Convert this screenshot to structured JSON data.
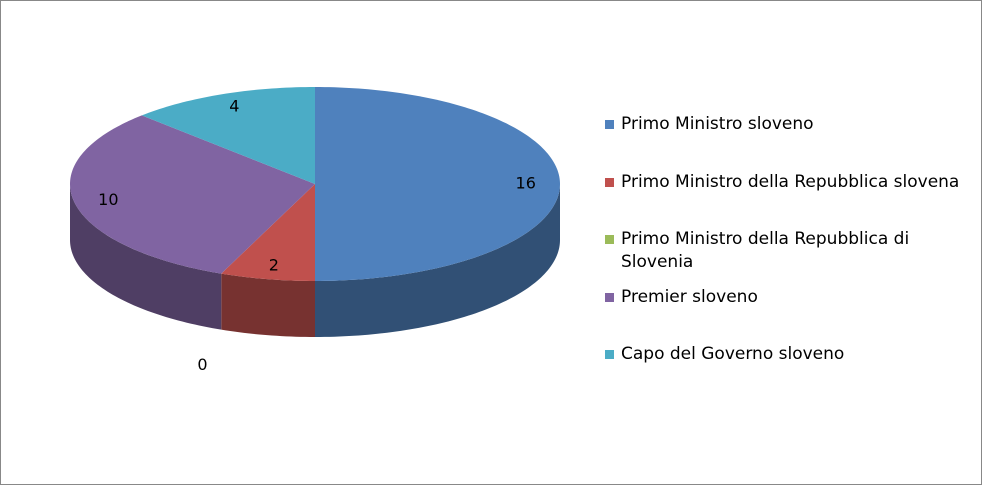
{
  "chart_data": {
    "type": "pie",
    "categories": [
      "Primo Ministro sloveno",
      "Primo Ministro della Repubblica slovena",
      "Primo Ministro della Repubblica di Slovenia",
      "Premier sloveno",
      "Capo del Governo sloveno"
    ],
    "values": [
      16,
      2,
      0,
      10,
      4
    ],
    "colors": [
      "#4f81bd",
      "#c0504d",
      "#9bbb59",
      "#8064a2",
      "#4bacc6"
    ],
    "legend": "right"
  }
}
